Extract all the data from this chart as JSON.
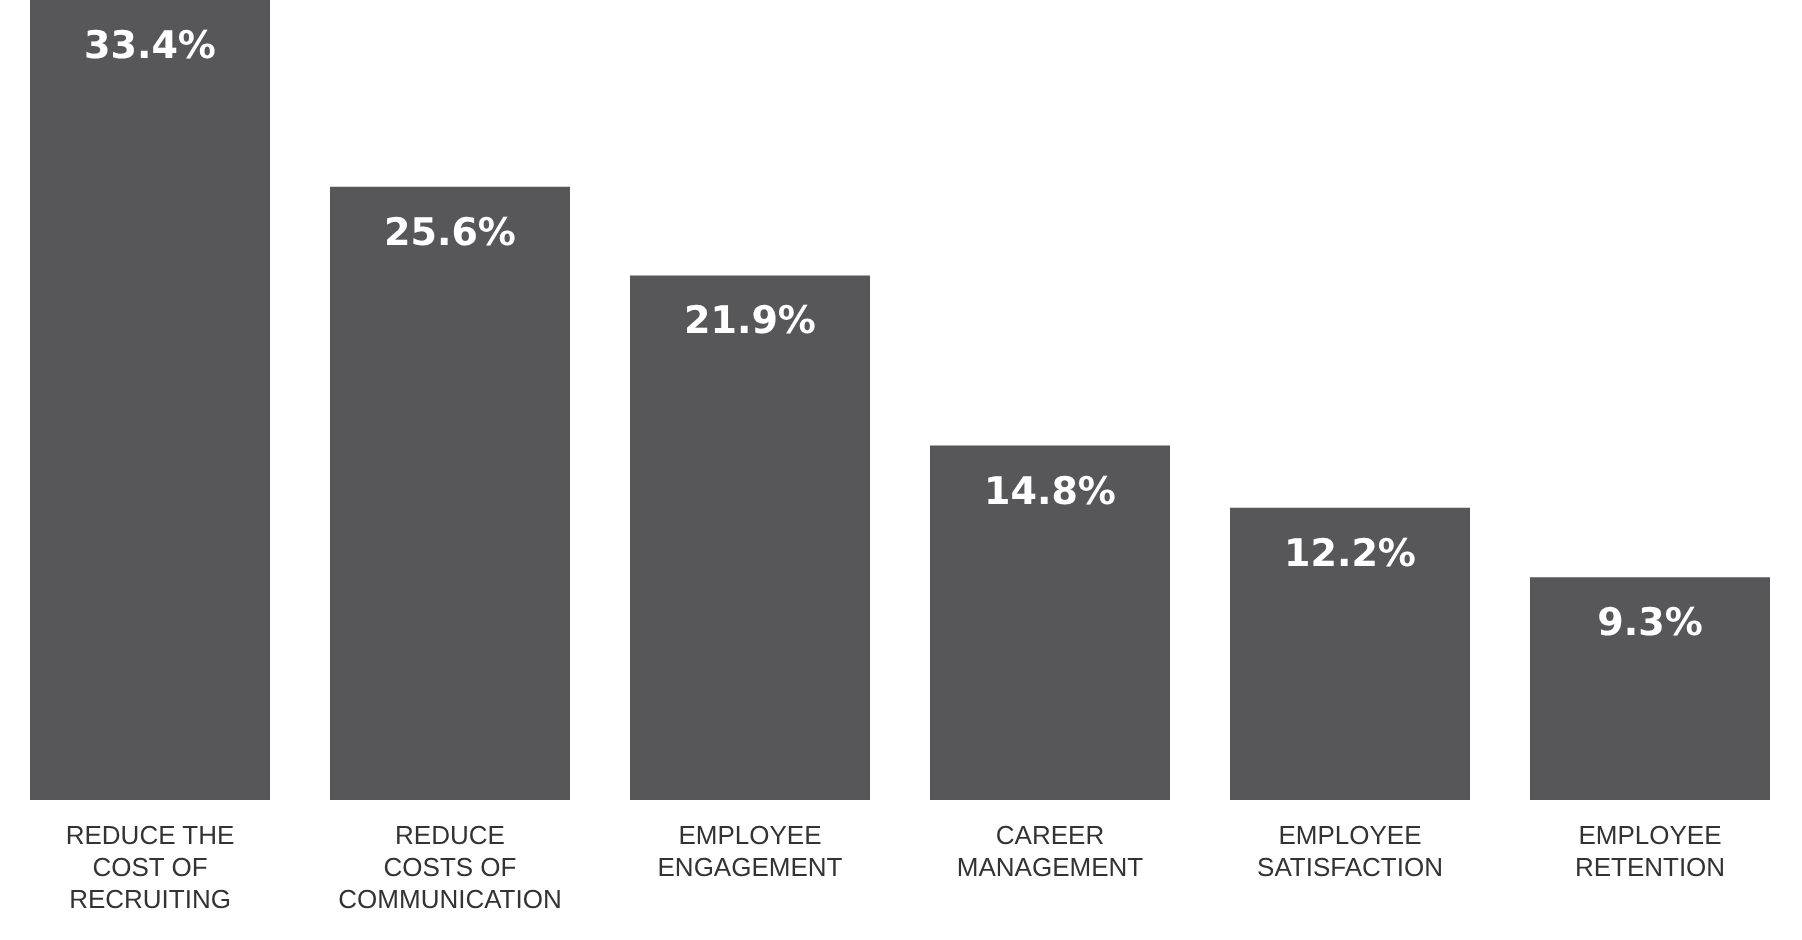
{
  "chart_data": {
    "type": "bar",
    "categories": [
      "REDUCE THE COST OF RECRUITING",
      "REDUCE COSTS OF COMMUNICATION",
      "EMPLOYEE ENGAGEMENT",
      "CAREER MANAGEMENT",
      "EMPLOYEE SATISFACTION",
      "EMPLOYEE RETENTION"
    ],
    "values": [
      33.4,
      25.6,
      21.9,
      14.8,
      12.2,
      9.3
    ],
    "value_labels": [
      "33.4%",
      "25.6%",
      "21.9%",
      "14.8%",
      "12.2%",
      "9.3%"
    ],
    "color": "#575759"
  }
}
